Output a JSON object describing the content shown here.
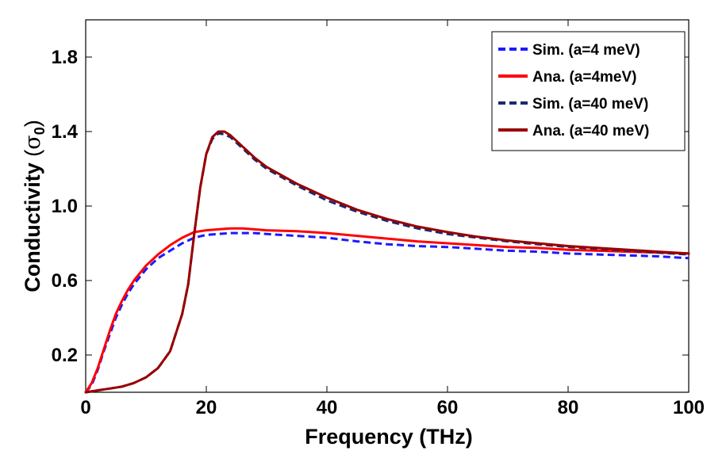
{
  "chart_data": {
    "type": "line",
    "xlabel": "Frequency (THz)",
    "ylabel": "Conductivity",
    "ylabel_unit_symbol": "σ",
    "ylabel_unit_subscript": "0",
    "xlim": [
      0,
      100
    ],
    "ylim": [
      0,
      2.0
    ],
    "xticks": [
      0,
      20,
      40,
      60,
      80,
      100
    ],
    "xtick_labels": [
      "0",
      "20",
      "40",
      "60",
      "80",
      "100"
    ],
    "yticks": [
      0.2,
      0.6,
      1.0,
      1.4,
      1.8
    ],
    "ytick_labels": [
      "0.2",
      "0.6",
      "1.0",
      "1.4",
      "1.8"
    ],
    "grid": false,
    "legend_position": "top-right",
    "series": [
      {
        "name": "Sim. (a=4 meV)",
        "color": "#1a1aff",
        "style": "dashed",
        "x": [
          0,
          1,
          2,
          3,
          4,
          5,
          6,
          7,
          8,
          9,
          10,
          12,
          14,
          16,
          18,
          20,
          22,
          24,
          26,
          28,
          30,
          35,
          40,
          45,
          50,
          55,
          60,
          65,
          70,
          75,
          80,
          85,
          90,
          95,
          100
        ],
        "y": [
          0.0,
          0.04,
          0.12,
          0.22,
          0.31,
          0.4,
          0.47,
          0.53,
          0.58,
          0.62,
          0.66,
          0.72,
          0.76,
          0.8,
          0.83,
          0.845,
          0.85,
          0.855,
          0.855,
          0.855,
          0.85,
          0.84,
          0.83,
          0.81,
          0.795,
          0.785,
          0.78,
          0.77,
          0.76,
          0.755,
          0.745,
          0.74,
          0.735,
          0.73,
          0.72
        ]
      },
      {
        "name": "Ana. (a=4meV)",
        "color": "#ff0000",
        "style": "solid",
        "x": [
          0,
          1,
          2,
          3,
          4,
          5,
          6,
          7,
          8,
          9,
          10,
          12,
          14,
          16,
          18,
          20,
          22,
          24,
          26,
          28,
          30,
          35,
          40,
          45,
          50,
          55,
          60,
          65,
          70,
          75,
          80,
          85,
          90,
          95,
          100
        ],
        "y": [
          0.0,
          0.05,
          0.13,
          0.23,
          0.33,
          0.42,
          0.49,
          0.55,
          0.6,
          0.64,
          0.68,
          0.74,
          0.79,
          0.83,
          0.86,
          0.87,
          0.875,
          0.88,
          0.88,
          0.875,
          0.87,
          0.865,
          0.855,
          0.84,
          0.825,
          0.81,
          0.8,
          0.79,
          0.78,
          0.775,
          0.765,
          0.76,
          0.755,
          0.75,
          0.745
        ]
      },
      {
        "name": "Sim. (a=40 meV)",
        "color": "#1a2a6e",
        "style": "dashed",
        "x": [
          0,
          2,
          4,
          6,
          8,
          10,
          12,
          14,
          16,
          17,
          18,
          19,
          20,
          21,
          22,
          23,
          24,
          26,
          28,
          30,
          35,
          40,
          45,
          50,
          55,
          60,
          65,
          70,
          75,
          80,
          85,
          90,
          95,
          100
        ],
        "y": [
          0.0,
          0.01,
          0.02,
          0.03,
          0.05,
          0.08,
          0.13,
          0.22,
          0.42,
          0.58,
          0.85,
          1.1,
          1.28,
          1.36,
          1.39,
          1.385,
          1.37,
          1.31,
          1.25,
          1.2,
          1.11,
          1.03,
          0.97,
          0.92,
          0.88,
          0.85,
          0.83,
          0.81,
          0.795,
          0.78,
          0.77,
          0.76,
          0.75,
          0.74
        ]
      },
      {
        "name": "Ana. (a=40 meV)",
        "color": "#990000",
        "style": "solid",
        "x": [
          0,
          2,
          4,
          6,
          8,
          10,
          12,
          14,
          16,
          17,
          18,
          19,
          20,
          21,
          22,
          23,
          24,
          26,
          28,
          30,
          35,
          40,
          45,
          50,
          55,
          60,
          65,
          70,
          75,
          80,
          85,
          90,
          95,
          100
        ],
        "y": [
          0.0,
          0.01,
          0.02,
          0.03,
          0.05,
          0.08,
          0.13,
          0.22,
          0.42,
          0.58,
          0.85,
          1.1,
          1.28,
          1.37,
          1.4,
          1.4,
          1.38,
          1.32,
          1.26,
          1.21,
          1.12,
          1.045,
          0.98,
          0.93,
          0.89,
          0.86,
          0.835,
          0.815,
          0.8,
          0.785,
          0.775,
          0.765,
          0.755,
          0.745
        ]
      }
    ]
  }
}
